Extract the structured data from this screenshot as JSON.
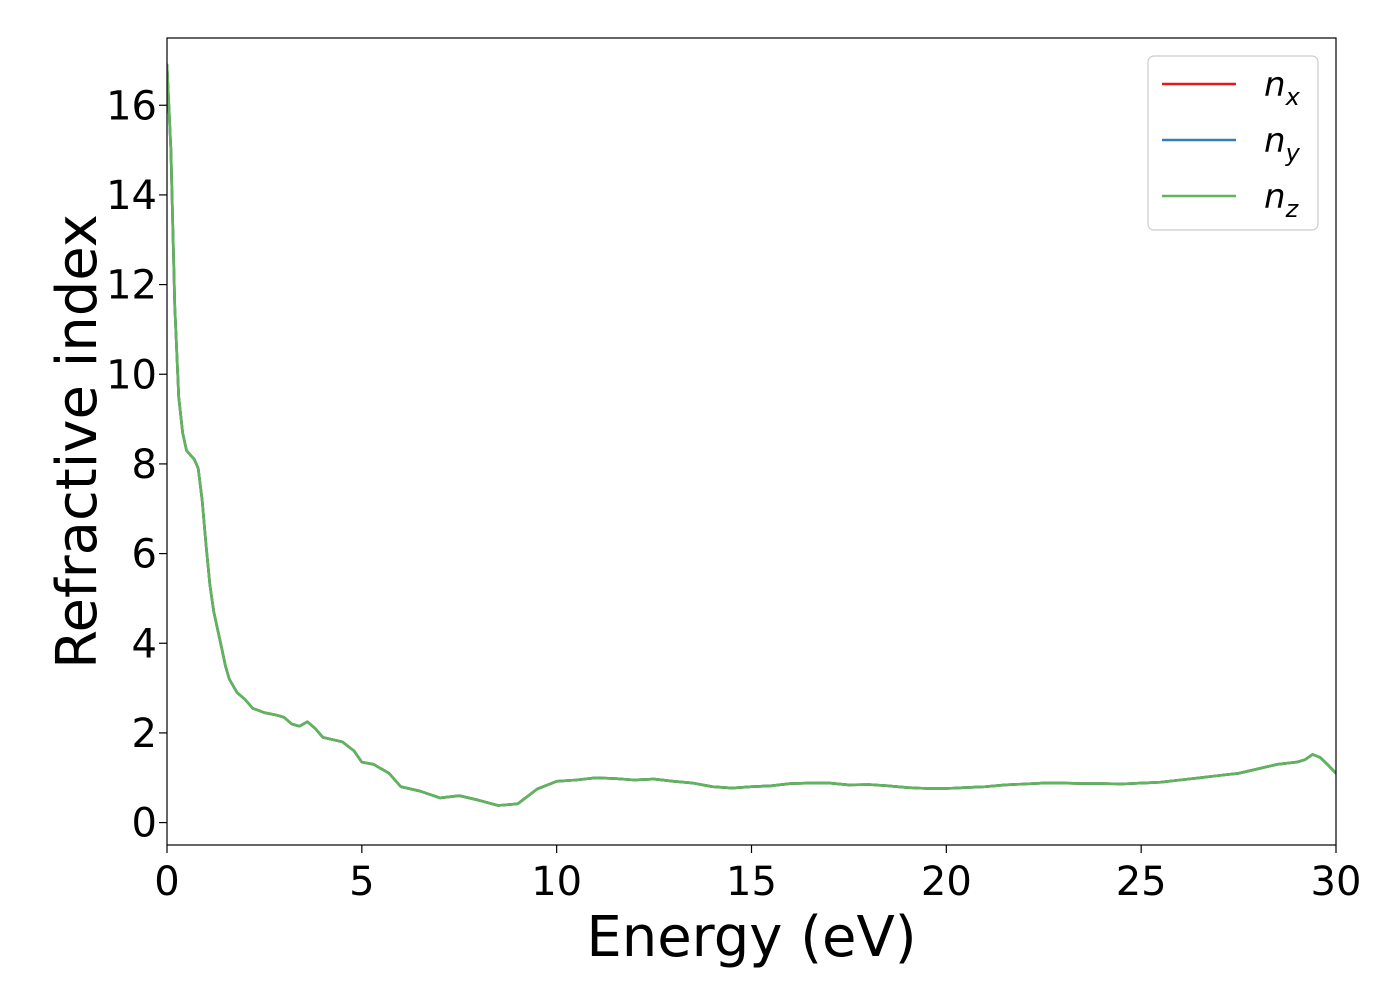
{
  "chart_data": {
    "type": "line",
    "title": "",
    "xlabel": "Energy (eV)",
    "ylabel": "Refractive index",
    "xlim": [
      0,
      30
    ],
    "ylim": [
      -0.5,
      17.5
    ],
    "xticks": [
      0,
      5,
      10,
      15,
      20,
      25,
      30
    ],
    "yticks": [
      0,
      2,
      4,
      6,
      8,
      10,
      12,
      14,
      16
    ],
    "grid": false,
    "legend_position": "top-right",
    "x": [
      0,
      0.1,
      0.2,
      0.3,
      0.4,
      0.5,
      0.6,
      0.7,
      0.8,
      0.9,
      1.0,
      1.1,
      1.2,
      1.3,
      1.4,
      1.5,
      1.6,
      1.8,
      2.0,
      2.2,
      2.5,
      2.8,
      3.0,
      3.2,
      3.4,
      3.6,
      3.8,
      4.0,
      4.5,
      4.8,
      5.0,
      5.3,
      5.7,
      6.0,
      6.5,
      7.0,
      7.5,
      8.0,
      8.5,
      9.0,
      9.5,
      10.0,
      10.5,
      11.0,
      11.5,
      12.0,
      12.5,
      13.0,
      13.5,
      14.0,
      14.5,
      15.0,
      15.5,
      16.0,
      16.5,
      17.0,
      17.5,
      18.0,
      18.5,
      19.0,
      19.5,
      20.0,
      20.5,
      21.0,
      21.5,
      22.0,
      22.5,
      23.0,
      23.5,
      24.0,
      24.5,
      25.0,
      25.5,
      26.0,
      26.5,
      27.0,
      27.5,
      28.0,
      28.5,
      29.0,
      29.2,
      29.4,
      29.6,
      29.8,
      30.0
    ],
    "series": [
      {
        "name": "n_x",
        "label_main": "n",
        "label_sub": "x",
        "color": "#e41a1c",
        "values": [
          16.9,
          15.0,
          11.5,
          9.5,
          8.7,
          8.3,
          8.2,
          8.1,
          7.9,
          7.2,
          6.2,
          5.3,
          4.7,
          4.3,
          3.9,
          3.5,
          3.2,
          2.9,
          2.75,
          2.55,
          2.45,
          2.4,
          2.35,
          2.2,
          2.15,
          2.25,
          2.1,
          1.9,
          1.8,
          1.6,
          1.35,
          1.3,
          1.1,
          0.8,
          0.7,
          0.55,
          0.6,
          0.5,
          0.38,
          0.42,
          0.75,
          0.92,
          0.95,
          1.0,
          0.98,
          0.95,
          0.97,
          0.92,
          0.88,
          0.8,
          0.77,
          0.8,
          0.82,
          0.87,
          0.88,
          0.88,
          0.84,
          0.85,
          0.82,
          0.78,
          0.76,
          0.76,
          0.78,
          0.8,
          0.84,
          0.86,
          0.88,
          0.88,
          0.87,
          0.87,
          0.86,
          0.88,
          0.9,
          0.95,
          1.0,
          1.05,
          1.1,
          1.2,
          1.3,
          1.35,
          1.4,
          1.52,
          1.45,
          1.28,
          1.1
        ]
      },
      {
        "name": "n_y",
        "label_main": "n",
        "label_sub": "y",
        "color": "#377eb8",
        "values": [
          16.9,
          15.0,
          11.5,
          9.5,
          8.7,
          8.3,
          8.2,
          8.1,
          7.9,
          7.2,
          6.2,
          5.3,
          4.7,
          4.3,
          3.9,
          3.5,
          3.2,
          2.9,
          2.75,
          2.55,
          2.45,
          2.4,
          2.35,
          2.2,
          2.15,
          2.25,
          2.1,
          1.9,
          1.8,
          1.6,
          1.35,
          1.3,
          1.1,
          0.8,
          0.7,
          0.55,
          0.6,
          0.5,
          0.38,
          0.42,
          0.75,
          0.92,
          0.95,
          1.0,
          0.98,
          0.95,
          0.97,
          0.92,
          0.88,
          0.8,
          0.77,
          0.8,
          0.82,
          0.87,
          0.88,
          0.88,
          0.84,
          0.85,
          0.82,
          0.78,
          0.76,
          0.76,
          0.78,
          0.8,
          0.84,
          0.86,
          0.88,
          0.88,
          0.87,
          0.87,
          0.86,
          0.88,
          0.9,
          0.95,
          1.0,
          1.05,
          1.1,
          1.2,
          1.3,
          1.35,
          1.4,
          1.52,
          1.45,
          1.28,
          1.1
        ]
      },
      {
        "name": "n_z",
        "label_main": "n",
        "label_sub": "z",
        "color": "#5fb55b",
        "values": [
          16.9,
          15.0,
          11.5,
          9.5,
          8.7,
          8.3,
          8.2,
          8.1,
          7.9,
          7.2,
          6.2,
          5.3,
          4.7,
          4.3,
          3.9,
          3.5,
          3.2,
          2.9,
          2.75,
          2.55,
          2.45,
          2.4,
          2.35,
          2.2,
          2.15,
          2.25,
          2.1,
          1.9,
          1.8,
          1.6,
          1.35,
          1.3,
          1.1,
          0.8,
          0.7,
          0.55,
          0.6,
          0.5,
          0.38,
          0.42,
          0.75,
          0.92,
          0.95,
          1.0,
          0.98,
          0.95,
          0.97,
          0.92,
          0.88,
          0.8,
          0.77,
          0.8,
          0.82,
          0.87,
          0.88,
          0.88,
          0.84,
          0.85,
          0.82,
          0.78,
          0.76,
          0.76,
          0.78,
          0.8,
          0.84,
          0.86,
          0.88,
          0.88,
          0.87,
          0.87,
          0.86,
          0.88,
          0.9,
          0.95,
          1.0,
          1.05,
          1.1,
          1.2,
          1.3,
          1.35,
          1.4,
          1.52,
          1.45,
          1.28,
          1.1
        ]
      }
    ]
  }
}
